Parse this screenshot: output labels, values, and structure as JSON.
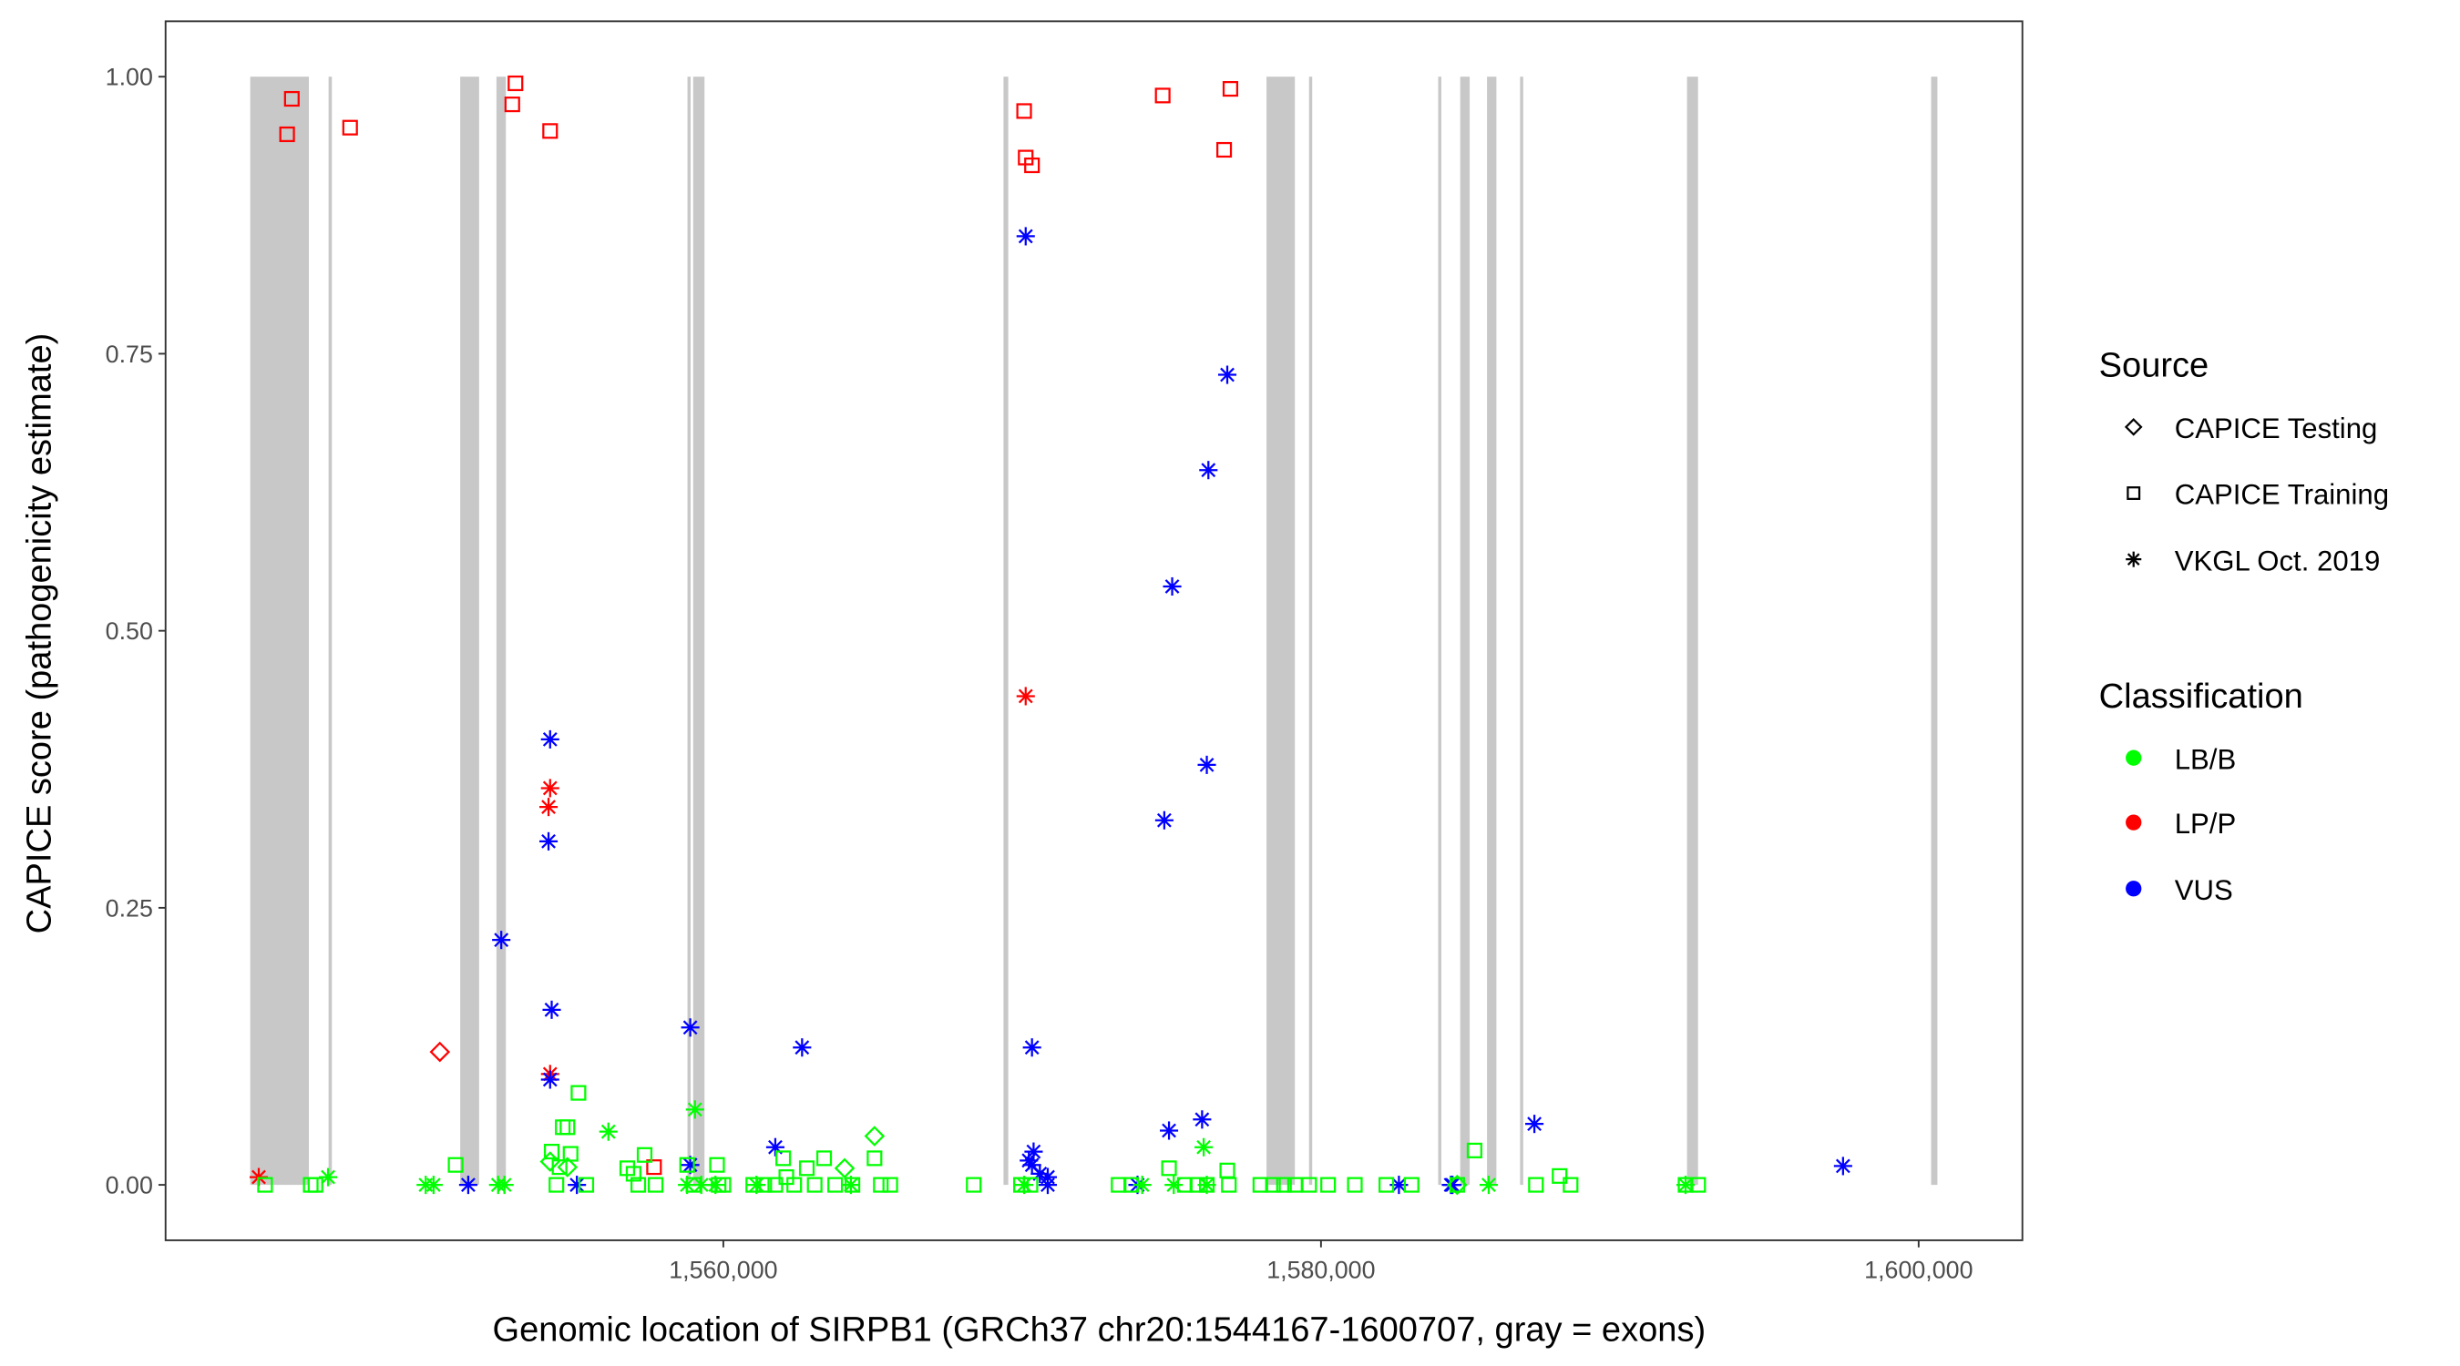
{
  "chart_data": {
    "type": "scatter",
    "xlabel": "Genomic location of SIRPB1 (GRCh37 chr20:1544167-1600707, gray = exons)",
    "ylabel": "CAPICE score (pathogenicity estimate)",
    "xlim": [
      1541335,
      1603472
    ],
    "ylim": [
      -0.05,
      1.05
    ],
    "x_ticks": [
      {
        "value": 1560000,
        "label": "1,560,000"
      },
      {
        "value": 1580000,
        "label": "1,580,000"
      },
      {
        "value": 1600000,
        "label": "1,600,000"
      }
    ],
    "y_ticks": [
      {
        "value": 0,
        "label": "0.00"
      },
      {
        "value": 0.25,
        "label": "0.25"
      },
      {
        "value": 0.5,
        "label": "0.50"
      },
      {
        "value": 0.75,
        "label": "0.75"
      },
      {
        "value": 1,
        "label": "1.00"
      }
    ],
    "grid": false,
    "exons": [
      [
        1544167,
        1546130
      ],
      [
        1546790,
        1546900
      ],
      [
        1551195,
        1551827
      ],
      [
        1552407,
        1552723
      ],
      [
        1558800,
        1558850
      ],
      [
        1558990,
        1559370
      ],
      [
        1569376,
        1569535
      ],
      [
        1578177,
        1579126
      ],
      [
        1579600,
        1579706
      ],
      [
        1583922,
        1584027
      ],
      [
        1584659,
        1584975
      ],
      [
        1585555,
        1585870
      ],
      [
        1586662,
        1586767
      ],
      [
        1592248,
        1592617
      ],
      [
        1600417,
        1600628
      ]
    ],
    "exon_color": "#c8c8c8",
    "legend": {
      "position": "right",
      "source": {
        "title": "Source",
        "items": [
          {
            "label": "CAPICE Testing",
            "shape": "diamond"
          },
          {
            "label": "CAPICE Training",
            "shape": "square"
          },
          {
            "label": "VKGL Oct. 2019",
            "shape": "asterisk"
          }
        ]
      },
      "classification": {
        "title": "Classification",
        "items": [
          {
            "label": "LB/B",
            "color": "#00ff00"
          },
          {
            "label": "LP/P",
            "color": "#ff0000"
          },
          {
            "label": "VUS",
            "color": "#0000ff"
          }
        ]
      }
    },
    "series": [
      {
        "source": "CAPICE Training",
        "classification": "LP/P",
        "points": [
          [
            1545560,
            0.98
          ],
          [
            1545402,
            0.948
          ],
          [
            1547510,
            0.954
          ],
          [
            1553044,
            0.994
          ],
          [
            1552938,
            0.975
          ],
          [
            1554203,
            0.951
          ],
          [
            1570066,
            0.969
          ],
          [
            1570118,
            0.927
          ],
          [
            1570329,
            0.92
          ],
          [
            1574703,
            0.983
          ],
          [
            1576969,
            0.989
          ],
          [
            1576759,
            0.934
          ],
          [
            1557681,
            0.016
          ]
        ]
      },
      {
        "source": "VKGL Oct. 2019",
        "classification": "LP/P",
        "points": [
          [
            1544453,
            0.007
          ],
          [
            1554203,
            0.358
          ],
          [
            1554150,
            0.341
          ],
          [
            1554203,
            0.1
          ],
          [
            1570118,
            0.441
          ]
        ]
      },
      {
        "source": "CAPICE Testing",
        "classification": "LP/P",
        "points": [
          [
            1550514,
            0.12
          ]
        ]
      },
      {
        "source": "VKGL Oct. 2019",
        "classification": "VUS",
        "points": [
          [
            1570118,
            0.856
          ],
          [
            1576864,
            0.731
          ],
          [
            1576232,
            0.645
          ],
          [
            1575020,
            0.54
          ],
          [
            1576179,
            0.379
          ],
          [
            1574756,
            0.329
          ],
          [
            1554203,
            0.402
          ],
          [
            1554150,
            0.31
          ],
          [
            1552569,
            0.221
          ],
          [
            1554256,
            0.158
          ],
          [
            1554203,
            0.095
          ],
          [
            1558893,
            0.142
          ],
          [
            1562635,
            0.124
          ],
          [
            1570329,
            0.124
          ],
          [
            1561739,
            0.034
          ],
          [
            1576021,
            0.059
          ],
          [
            1574914,
            0.049
          ],
          [
            1587141,
            0.055
          ],
          [
            1597470,
            0.017
          ],
          [
            1558893,
            0.018
          ],
          [
            1551463,
            0
          ],
          [
            1555099,
            0
          ],
          [
            1570382,
            0.03
          ],
          [
            1570329,
            0.018
          ],
          [
            1570224,
            0.022
          ],
          [
            1570593,
            0.01
          ],
          [
            1570856,
            0.007
          ],
          [
            1570856,
            0
          ],
          [
            1573860,
            0
          ],
          [
            1582608,
            0
          ],
          [
            1584347,
            0
          ],
          [
            1584400,
            0
          ]
        ]
      },
      {
        "source": "CAPICE Training",
        "classification": "LB/B",
        "points": [
          [
            1544664,
            0
          ],
          [
            1546193,
            0
          ],
          [
            1546351,
            0
          ],
          [
            1551041,
            0.018
          ],
          [
            1554414,
            0
          ],
          [
            1554625,
            0.052
          ],
          [
            1554783,
            0.052
          ],
          [
            1554256,
            0.03
          ],
          [
            1554519,
            0.016
          ],
          [
            1554888,
            0.028
          ],
          [
            1555152,
            0.083
          ],
          [
            1555415,
            0
          ],
          [
            1556785,
            0.015
          ],
          [
            1556996,
            0.01
          ],
          [
            1557154,
            0
          ],
          [
            1557365,
            0.027
          ],
          [
            1557734,
            0
          ],
          [
            1558788,
            0.018
          ],
          [
            1558999,
            0
          ],
          [
            1559789,
            0.018
          ],
          [
            1559842,
            0
          ],
          [
            1560000,
            0
          ],
          [
            1561001,
            0
          ],
          [
            1561370,
            0
          ],
          [
            1561739,
            0
          ],
          [
            1562003,
            0.024
          ],
          [
            1562108,
            0.007
          ],
          [
            1562372,
            0
          ],
          [
            1562793,
            0.015
          ],
          [
            1563057,
            0
          ],
          [
            1563373,
            0.024
          ],
          [
            1563742,
            0
          ],
          [
            1564321,
            0
          ],
          [
            1565059,
            0.024
          ],
          [
            1565270,
            0
          ],
          [
            1565586,
            0
          ],
          [
            1568379,
            0
          ],
          [
            1569960,
            0
          ],
          [
            1570277,
            0
          ],
          [
            1573228,
            0
          ],
          [
            1573649,
            0
          ],
          [
            1574914,
            0.015
          ],
          [
            1575441,
            0
          ],
          [
            1575863,
            0
          ],
          [
            1576179,
            0
          ],
          [
            1576864,
            0.013
          ],
          [
            1576917,
            0
          ],
          [
            1577971,
            0
          ],
          [
            1578392,
            0
          ],
          [
            1578761,
            0
          ],
          [
            1579130,
            0
          ],
          [
            1579604,
            0
          ],
          [
            1580237,
            0
          ],
          [
            1581133,
            0
          ],
          [
            1582187,
            0
          ],
          [
            1583030,
            0
          ],
          [
            1584558,
            0
          ],
          [
            1585138,
            0.031
          ],
          [
            1587193,
            0
          ],
          [
            1587984,
            0.008
          ],
          [
            1588353,
            0
          ],
          [
            1592200,
            0
          ],
          [
            1592621,
            0
          ]
        ]
      },
      {
        "source": "CAPICE Testing",
        "classification": "LB/B",
        "points": [
          [
            1554203,
            0.021
          ],
          [
            1554783,
            0.016
          ],
          [
            1564058,
            0.015
          ],
          [
            1565059,
            0.044
          ],
          [
            1584558,
            0
          ]
        ]
      },
      {
        "source": "VKGL Oct. 2019",
        "classification": "LB/B",
        "points": [
          [
            1546772,
            0.007
          ],
          [
            1550040,
            0
          ],
          [
            1550303,
            0
          ],
          [
            1552464,
            0
          ],
          [
            1552675,
            0
          ],
          [
            1556153,
            0.048
          ],
          [
            1559051,
            0.068
          ],
          [
            1558788,
            0
          ],
          [
            1559262,
            0
          ],
          [
            1559736,
            0
          ],
          [
            1561107,
            0
          ],
          [
            1564269,
            0
          ],
          [
            1570066,
            0
          ],
          [
            1574018,
            0
          ],
          [
            1575072,
            0
          ],
          [
            1576074,
            0.034
          ],
          [
            1576179,
            0
          ],
          [
            1585612,
            0
          ],
          [
            1592200,
            0
          ]
        ]
      }
    ]
  }
}
